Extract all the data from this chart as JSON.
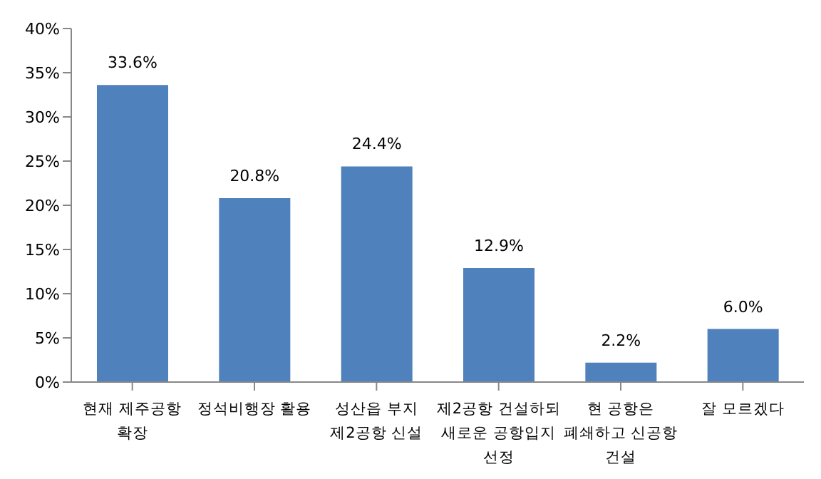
{
  "chart_data": {
    "type": "bar",
    "categories": [
      "현재 제주공항\n확장",
      "정석비행장 활용",
      "성산읍 부지\n제2공항 신설",
      "제2공항 건설하되\n새로운 공항입지\n선정",
      "현 공항은\n폐쇄하고 신공항\n건설",
      "잘 모르겠다"
    ],
    "values": [
      33.6,
      20.8,
      24.4,
      12.9,
      2.2,
      6.0
    ],
    "value_labels": [
      "33.6%",
      "20.8%",
      "24.4%",
      "12.9%",
      "2.2%",
      "6.0%"
    ],
    "color": "#4f81bd",
    "ylim": [
      0,
      40
    ],
    "yticks": [
      {
        "value": 0,
        "label": "0%"
      },
      {
        "value": 5,
        "label": "5%"
      },
      {
        "value": 10,
        "label": "10%"
      },
      {
        "value": 15,
        "label": "15%"
      },
      {
        "value": 20,
        "label": "20%"
      },
      {
        "value": 25,
        "label": "25%"
      },
      {
        "value": 30,
        "label": "30%"
      },
      {
        "value": 35,
        "label": "35%"
      },
      {
        "value": 40,
        "label": "40%"
      }
    ],
    "grid": false,
    "legend": false
  }
}
